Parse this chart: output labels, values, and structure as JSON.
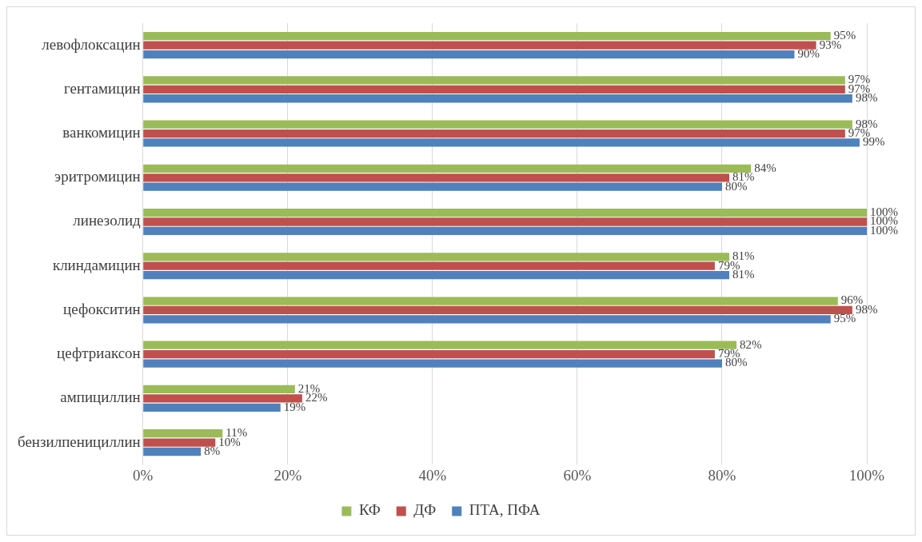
{
  "chart_data": {
    "type": "bar",
    "orientation": "horizontal",
    "categories": [
      "левофлоксацин",
      "гентамицин",
      "ванкомицин",
      "эритромицин",
      "линезолид",
      "клиндамицин",
      "цефокситин",
      "цефтриаксон",
      "ампициллин",
      "бензилпенициллин"
    ],
    "series": [
      {
        "name": "КФ",
        "color": "#9bbb59",
        "values": [
          95,
          97,
          98,
          84,
          100,
          81,
          96,
          82,
          21,
          11
        ],
        "value_labels": [
          "95%",
          "97%",
          "98%",
          "84%",
          "100%",
          "81%",
          "96%",
          "82%",
          "21%",
          "11%"
        ]
      },
      {
        "name": "ДФ",
        "color": "#c0504d",
        "values": [
          93,
          97,
          97,
          81,
          100,
          79,
          98,
          79,
          22,
          10
        ],
        "value_labels": [
          "93%",
          "97%",
          "97%",
          "81%",
          "100%",
          "79%",
          "98%",
          "79%",
          "22%",
          "10%"
        ]
      },
      {
        "name": "ПТА, ПФА",
        "color": "#4f81bd",
        "values": [
          90,
          98,
          99,
          80,
          100,
          81,
          95,
          80,
          19,
          8
        ],
        "value_labels": [
          "90%",
          "98%",
          "99%",
          "80%",
          "100%",
          "81%",
          "95%",
          "80%",
          "19%",
          "8%"
        ]
      }
    ],
    "xlim": [
      0,
      100
    ],
    "xticks": [
      {
        "value": 0,
        "label": "0%"
      },
      {
        "value": 20,
        "label": "20%"
      },
      {
        "value": 40,
        "label": "40%"
      },
      {
        "value": 60,
        "label": "60%"
      },
      {
        "value": 80,
        "label": "80%"
      },
      {
        "value": 100,
        "label": "100%"
      }
    ],
    "grid": "x",
    "legend": "bottom"
  }
}
